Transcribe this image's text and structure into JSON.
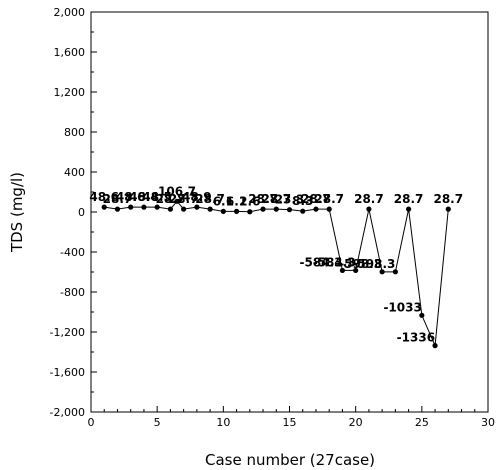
{
  "chart_data": {
    "type": "line",
    "xlabel": "Case number (27case)",
    "ylabel": "TDS (mg/l)",
    "xlim": [
      0,
      30
    ],
    "ylim": [
      -2000,
      2000
    ],
    "x_ticks": [
      0,
      5,
      10,
      15,
      20,
      25,
      30
    ],
    "y_ticks": [
      -2000,
      -1600,
      -1200,
      -800,
      -400,
      0,
      400,
      800,
      1200,
      1600,
      2000
    ],
    "x_tick_labels": [
      "0",
      "5",
      "10",
      "15",
      "20",
      "25",
      "30"
    ],
    "y_tick_labels": [
      "-2,000",
      "-1,600",
      "-1,200",
      "-800",
      "-400",
      "0",
      "400",
      "800",
      "1,200",
      "1,600",
      "2,000"
    ],
    "grid": false,
    "series": [
      {
        "color": "#000000",
        "points": [
          {
            "x": 1,
            "y": 48.6,
            "label": "48.6"
          },
          {
            "x": 2,
            "y": 28.7,
            "label": "28.7"
          },
          {
            "x": 3,
            "y": 48.6,
            "label": "48.6"
          },
          {
            "x": 4,
            "y": 48.4,
            "label": "48.4"
          },
          {
            "x": 5,
            "y": 48.5,
            "label": "48.5"
          },
          {
            "x": 6,
            "y": 28.7,
            "label": "28.7"
          },
          {
            "x": 6.5,
            "y": 106.7,
            "label": "106.7"
          },
          {
            "x": 7,
            "y": 28.7,
            "label": "28.7"
          },
          {
            "x": 8,
            "y": 48.9,
            "label": "48.9"
          },
          {
            "x": 9,
            "y": 28.7,
            "label": "28.7"
          },
          {
            "x": 10,
            "y": 6.1,
            "label": "6.1"
          },
          {
            "x": 11,
            "y": 6.1,
            "label": "6.1"
          },
          {
            "x": 12,
            "y": 2.6,
            "label": "2.6"
          },
          {
            "x": 13,
            "y": 28.7,
            "label": "28.7"
          },
          {
            "x": 14,
            "y": 28.7,
            "label": "28.7"
          },
          {
            "x": 15,
            "y": 23.3,
            "label": "23.3"
          },
          {
            "x": 16,
            "y": 8.3,
            "label": "8.3"
          },
          {
            "x": 17,
            "y": 28.7,
            "label": "28.7"
          },
          {
            "x": 18,
            "y": 28.7,
            "label": "28.7"
          },
          {
            "x": 19,
            "y": -584.3,
            "label": "-584.3"
          },
          {
            "x": 20,
            "y": -584.3,
            "label": "-584.3"
          },
          {
            "x": 21,
            "y": 28.7,
            "label": "28.7"
          },
          {
            "x": 22,
            "y": -598.3,
            "label": "-598.3"
          },
          {
            "x": 23,
            "y": -598.3,
            "label": "-598.3"
          },
          {
            "x": 24,
            "y": 28.7,
            "label": "28.7"
          },
          {
            "x": 25,
            "y": -1033,
            "label": "-1033"
          },
          {
            "x": 26,
            "y": -1336,
            "label": "-1336"
          },
          {
            "x": 27,
            "y": 28.7,
            "label": "28.7"
          }
        ]
      }
    ]
  }
}
